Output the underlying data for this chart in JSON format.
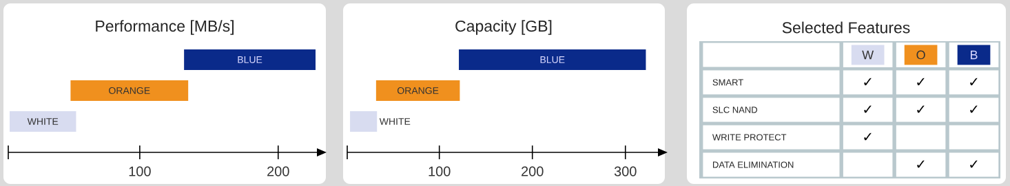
{
  "chart_data": [
    {
      "type": "bar",
      "orientation": "horizontal",
      "title": "Performance [MB/s]",
      "categories": [
        "BLUE",
        "ORANGE",
        "WHITE"
      ],
      "base": [
        132,
        50,
        6
      ],
      "values": [
        95,
        85,
        48
      ],
      "colors": [
        "#0a2a8a",
        "#f0901e",
        "#d8dcf0"
      ],
      "xlim": [
        5,
        228
      ],
      "xticks": [
        100,
        200
      ],
      "tick_labels": "x"
    },
    {
      "type": "bar",
      "orientation": "horizontal",
      "title": "Capacity [GB]",
      "categories": [
        "BLUE",
        "ORANGE",
        "WHITE"
      ],
      "base": [
        121,
        32,
        4
      ],
      "values": [
        201,
        90,
        29
      ],
      "colors": [
        "#0a2a8a",
        "#f0901e",
        "#d8dcf0"
      ],
      "xlim": [
        1,
        335
      ],
      "xticks": [
        100,
        200,
        300
      ],
      "tick_labels": "x"
    },
    {
      "type": "other",
      "title": "Selected Features",
      "categories": [
        "W",
        "O",
        "B"
      ],
      "colors": [
        "#d8dcf0",
        "#f0901e",
        "#0a2a8a"
      ],
      "y_categories": [
        "SMART",
        "SLC NAND",
        "WRITE PROTECT",
        "DATA ELIMINATION"
      ],
      "cell_labels": [
        [
          "✓",
          "✓",
          "✓"
        ],
        [
          "✓",
          "✓",
          "✓"
        ],
        [
          "✓",
          null,
          null
        ],
        [
          null,
          "✓",
          "✓"
        ]
      ]
    }
  ]
}
